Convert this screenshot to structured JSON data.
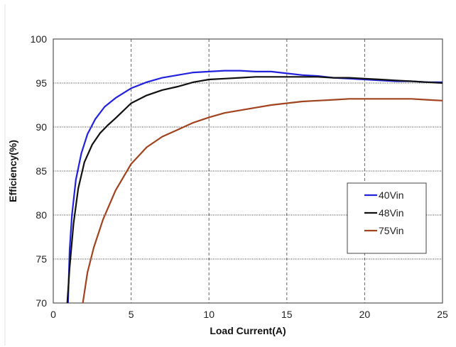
{
  "chart_data": {
    "type": "line",
    "title": "",
    "xlabel": "Load Current(A)",
    "ylabel": "Efficiency(%)",
    "xlim": [
      0,
      25
    ],
    "ylim": [
      70,
      100
    ],
    "x_ticks": [
      0,
      5,
      10,
      15,
      20,
      25
    ],
    "y_ticks": [
      70,
      75,
      80,
      85,
      90,
      95,
      100
    ],
    "grid": {
      "vertical": "dashed",
      "horizontal": "dotted"
    },
    "legend_position": "right",
    "series": [
      {
        "name": "40Vin",
        "color": "#2222dd",
        "points": [
          [
            0.95,
            70
          ],
          [
            1.05,
            76
          ],
          [
            1.2,
            80
          ],
          [
            1.45,
            84
          ],
          [
            1.8,
            87
          ],
          [
            2.2,
            89.2
          ],
          [
            2.7,
            90.9
          ],
          [
            3.3,
            92.3
          ],
          [
            4,
            93.3
          ],
          [
            5,
            94.4
          ],
          [
            6,
            95.1
          ],
          [
            7,
            95.6
          ],
          [
            8,
            95.9
          ],
          [
            9,
            96.2
          ],
          [
            10,
            96.3
          ],
          [
            11,
            96.4
          ],
          [
            12,
            96.4
          ],
          [
            13,
            96.3
          ],
          [
            14,
            96.3
          ],
          [
            15,
            96.1
          ],
          [
            16,
            95.9
          ],
          [
            17,
            95.8
          ],
          [
            18,
            95.6
          ],
          [
            19,
            95.5
          ],
          [
            20,
            95.4
          ],
          [
            21,
            95.3
          ],
          [
            22,
            95.2
          ],
          [
            23,
            95.2
          ],
          [
            24,
            95.1
          ],
          [
            25,
            95.1
          ]
        ]
      },
      {
        "name": "48Vin",
        "color": "#111111",
        "points": [
          [
            0.9,
            70
          ],
          [
            1.05,
            74
          ],
          [
            1.3,
            79
          ],
          [
            1.6,
            83
          ],
          [
            2,
            86
          ],
          [
            2.5,
            88
          ],
          [
            3,
            89.3
          ],
          [
            3.5,
            90.2
          ],
          [
            4,
            91
          ],
          [
            5,
            92.7
          ],
          [
            6,
            93.6
          ],
          [
            7,
            94.2
          ],
          [
            8,
            94.6
          ],
          [
            9,
            95.1
          ],
          [
            10,
            95.4
          ],
          [
            11,
            95.5
          ],
          [
            12,
            95.6
          ],
          [
            13,
            95.7
          ],
          [
            14,
            95.7
          ],
          [
            15,
            95.7
          ],
          [
            16,
            95.7
          ],
          [
            17,
            95.7
          ],
          [
            18,
            95.6
          ],
          [
            19,
            95.6
          ],
          [
            20,
            95.5
          ],
          [
            21,
            95.4
          ],
          [
            22,
            95.3
          ],
          [
            23,
            95.2
          ],
          [
            24,
            95.1
          ],
          [
            25,
            95
          ]
        ]
      },
      {
        "name": "75Vin",
        "color": "#a0431e",
        "points": [
          [
            1.9,
            70
          ],
          [
            2.2,
            73.5
          ],
          [
            2.6,
            76.3
          ],
          [
            3.2,
            79.5
          ],
          [
            4,
            82.8
          ],
          [
            5,
            85.8
          ],
          [
            6,
            87.7
          ],
          [
            7,
            88.9
          ],
          [
            8,
            89.7
          ],
          [
            9,
            90.5
          ],
          [
            10,
            91.1
          ],
          [
            11,
            91.6
          ],
          [
            12,
            91.9
          ],
          [
            13,
            92.2
          ],
          [
            14,
            92.5
          ],
          [
            15,
            92.7
          ],
          [
            16,
            92.9
          ],
          [
            17,
            93
          ],
          [
            18,
            93.1
          ],
          [
            19,
            93.2
          ],
          [
            20,
            93.2
          ],
          [
            21,
            93.2
          ],
          [
            22,
            93.2
          ],
          [
            23,
            93.2
          ],
          [
            24,
            93.1
          ],
          [
            25,
            93
          ]
        ]
      }
    ]
  }
}
